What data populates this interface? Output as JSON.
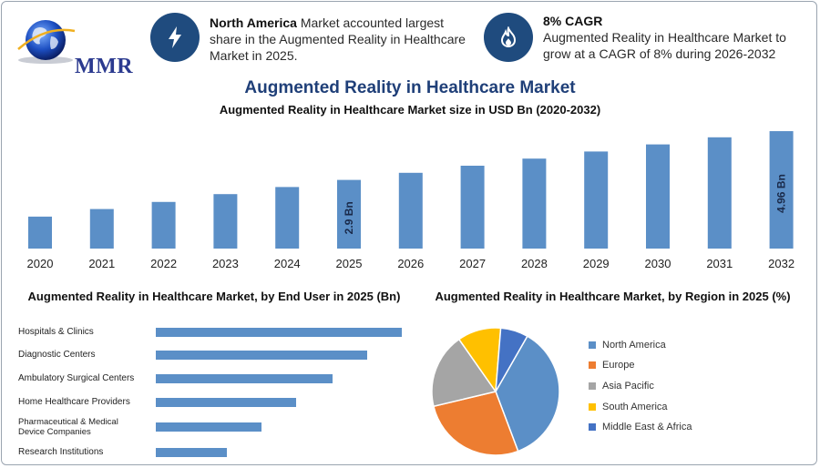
{
  "header": {
    "logo_text": "MMR",
    "info1_bold": "North America",
    "info1_text": " Market accounted largest share in the Augmented Reality in Healthcare Market in 2025.",
    "info2_bold": "8% CAGR",
    "info2_text": "Augmented Reality in Healthcare Market to grow at a CAGR of 8% during 2026-2032",
    "icons": [
      "lightning-icon",
      "flame-icon"
    ]
  },
  "titles": {
    "main": "Augmented Reality in Healthcare Market",
    "sub": "Augmented Reality in Healthcare Market size in USD Bn (2020-2032)",
    "end_user": "Augmented Reality in Healthcare Market, by End User in 2025 (Bn)",
    "region": "Augmented Reality in Healthcare Market, by Region in 2025 (%)"
  },
  "chart_data": [
    {
      "type": "bar",
      "title": "Augmented Reality in Healthcare Market size in USD Bn (2020-2032)",
      "categories": [
        "2020",
        "2021",
        "2022",
        "2023",
        "2024",
        "2025",
        "2026",
        "2027",
        "2028",
        "2029",
        "2030",
        "2031",
        "2032"
      ],
      "values": [
        1.35,
        1.67,
        1.97,
        2.3,
        2.6,
        2.9,
        3.2,
        3.5,
        3.8,
        4.1,
        4.4,
        4.7,
        4.96
      ],
      "data_labels": [
        null,
        null,
        null,
        null,
        null,
        "2.9 Bn",
        null,
        null,
        null,
        null,
        null,
        null,
        "4.96 Bn"
      ],
      "ylim": [
        0,
        5
      ],
      "color": "#5b8fc7",
      "grid": false
    },
    {
      "type": "bar",
      "orientation": "horizontal",
      "title": "Augmented Reality in Healthcare Market, by End User in 2025 (Bn)",
      "categories": [
        "Hospitals & Clinics",
        "Diagnostic Centers",
        "Ambulatory Surgical Centers",
        "Home Healthcare Providers",
        "Pharmaceutical & Medical Device Companies",
        "Research Institutions"
      ],
      "values": [
        1.0,
        0.86,
        0.72,
        0.57,
        0.43,
        0.29
      ],
      "xlim": [
        0,
        1.0
      ],
      "color": "#5b8fc7"
    },
    {
      "type": "pie",
      "title": "Augmented Reality in Healthcare Market, by Region in 2025 (%)",
      "labels": [
        "North America",
        "Europe",
        "Asia Pacific",
        "South America",
        "Middle East & Africa"
      ],
      "values": [
        36,
        27,
        19,
        11,
        7
      ],
      "colors": [
        "#5b8fc7",
        "#ed7d31",
        "#a5a5a5",
        "#ffc000",
        "#4472c4"
      ],
      "legend": "right"
    }
  ]
}
